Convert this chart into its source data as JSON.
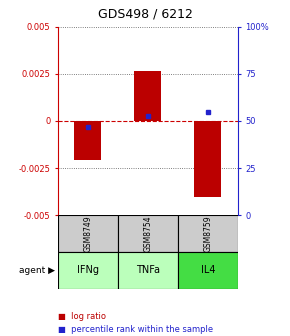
{
  "title": "GDS498 / 6212",
  "samples": [
    "GSM8749",
    "GSM8754",
    "GSM8759"
  ],
  "agents": [
    "IFNg",
    "TNFa",
    "IL4"
  ],
  "log_ratios": [
    -0.00205,
    0.00265,
    -0.00405
  ],
  "percentile_ranks": [
    0.47,
    0.525,
    0.55
  ],
  "ylim_left": [
    -0.005,
    0.005
  ],
  "yticks_left": [
    -0.005,
    -0.0025,
    0.0,
    0.0025,
    0.005
  ],
  "yticks_left_labels": [
    "-0.005",
    "-0.0025",
    "0",
    "0.0025",
    "0.005"
  ],
  "yticks_right": [
    0.0,
    0.25,
    0.5,
    0.75,
    1.0
  ],
  "yticks_right_labels": [
    "0",
    "25",
    "50",
    "75",
    "100%"
  ],
  "bar_color": "#bb0000",
  "dot_color": "#2222cc",
  "zero_line_color": "#cc0000",
  "sample_cell_color": "#cccccc",
  "agent_cell_colors": [
    "#bbffbb",
    "#bbffbb",
    "#44dd44"
  ],
  "left_axis_color": "#cc0000",
  "right_axis_color": "#2222cc",
  "bar_width": 0.45,
  "fig_width": 2.9,
  "fig_height": 3.36,
  "dpi": 100
}
